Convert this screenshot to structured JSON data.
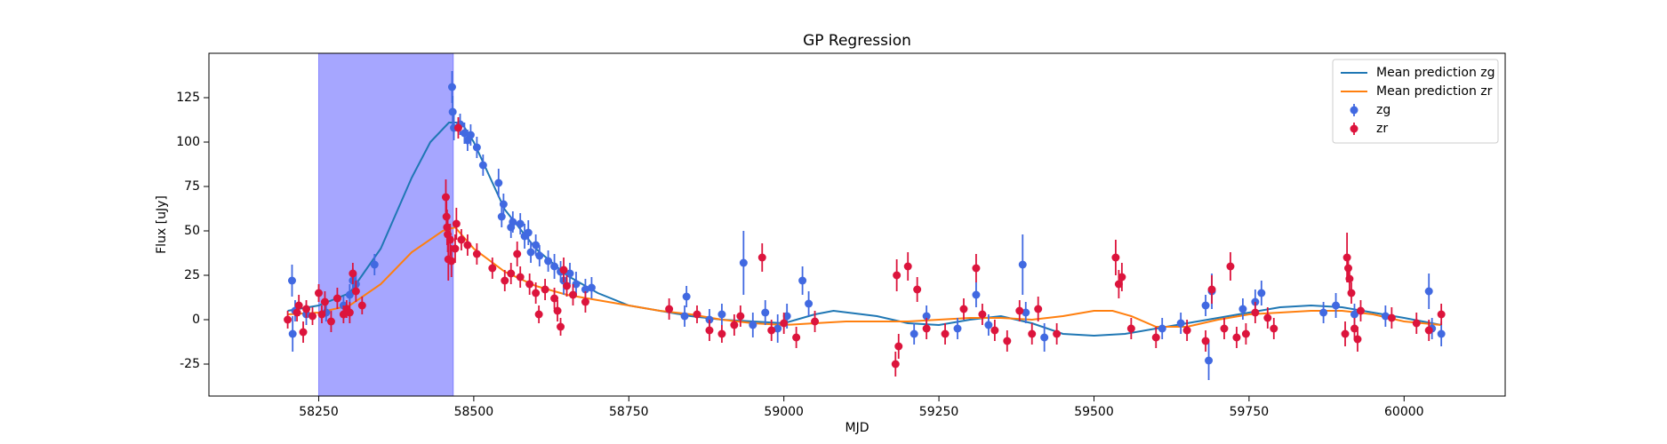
{
  "chart_data": {
    "type": "errorbar-line",
    "title": "GP Regression",
    "xlabel": "MJD",
    "ylabel": "Flux [uJy]",
    "xlim": [
      58073,
      60163
    ],
    "ylim": [
      -43,
      150
    ],
    "xticks": [
      58250,
      58500,
      58750,
      59000,
      59250,
      59500,
      59750,
      60000
    ],
    "yticks": [
      -25,
      0,
      25,
      50,
      75,
      100,
      125
    ],
    "legend": "upper right",
    "span": {
      "x": [
        58250,
        58467
      ],
      "color": "#0000ff",
      "alpha": 0.35
    },
    "series": [
      {
        "name": "Mean prediction zg",
        "kind": "line",
        "color": "#1f77b4",
        "x": [
          58200,
          58250,
          58300,
          58350,
          58400,
          58430,
          58460,
          58480,
          58500,
          58550,
          58600,
          58650,
          58700,
          58750,
          58800,
          58850,
          58900,
          58950,
          59000,
          59050,
          59080,
          59150,
          59200,
          59250,
          59300,
          59350,
          59400,
          59450,
          59500,
          59550,
          59600,
          59650,
          59700,
          59750,
          59800,
          59850,
          59900,
          59950,
          60000,
          60060
        ],
        "values": [
          5,
          8,
          15,
          40,
          80,
          100,
          111,
          111,
          100,
          62,
          40,
          25,
          15,
          8,
          5,
          2,
          0,
          -1,
          -2,
          3,
          5,
          2,
          -2,
          -3,
          0,
          2,
          -2,
          -8,
          -9,
          -8,
          -5,
          -2,
          1,
          4,
          7,
          8,
          7,
          4,
          1,
          -3
        ]
      },
      {
        "name": "Mean prediction zr",
        "kind": "line",
        "color": "#ff7f0e",
        "x": [
          58200,
          58250,
          58300,
          58350,
          58400,
          58450,
          58470,
          58500,
          58550,
          58600,
          58650,
          58700,
          58750,
          58800,
          58850,
          58900,
          58950,
          59000,
          59050,
          59100,
          59150,
          59200,
          59250,
          59300,
          59350,
          59400,
          59450,
          59500,
          59530,
          59560,
          59600,
          59650,
          59700,
          59750,
          59800,
          59850,
          59900,
          59950,
          60000,
          60060
        ],
        "values": [
          3,
          4,
          8,
          20,
          38,
          50,
          52,
          40,
          27,
          19,
          14,
          11,
          8,
          5,
          3,
          0,
          -2,
          -3,
          -2,
          -1,
          -1,
          -1,
          0,
          1,
          1,
          0,
          2,
          5,
          5,
          2,
          -4,
          -4,
          0,
          3,
          4,
          5,
          5,
          3,
          -1,
          -3
        ]
      },
      {
        "name": "zg",
        "kind": "errorbar",
        "color": "#4169e1",
        "x": [
          58207,
          58208,
          58212,
          58230,
          58262,
          58290,
          58300,
          58305,
          58310,
          58340,
          58465,
          58466,
          58468,
          58478,
          58485,
          58490,
          58495,
          58505,
          58515,
          58540,
          58545,
          58548,
          58560,
          58563,
          58575,
          58582,
          58588,
          58592,
          58600,
          58606,
          58620,
          58630,
          58640,
          58645,
          58655,
          58665,
          58680,
          58690,
          58840,
          58843,
          58880,
          58900,
          58935,
          58950,
          58970,
          58990,
          59005,
          59030,
          59040,
          59210,
          59230,
          59280,
          59310,
          59330,
          59385,
          59390,
          59420,
          59610,
          59640,
          59680,
          59685,
          59690,
          59740,
          59760,
          59770,
          59870,
          59890,
          59920,
          59970,
          60040,
          60045,
          60060
        ],
        "values": [
          22,
          -8,
          5,
          3,
          4,
          8,
          14,
          22,
          20,
          31,
          131,
          117,
          108,
          110,
          105,
          101,
          104,
          97,
          87,
          77,
          58,
          65,
          52,
          55,
          54,
          47,
          49,
          38,
          42,
          36,
          33,
          30,
          27,
          22,
          26,
          20,
          17,
          18,
          2,
          13,
          0,
          3,
          32,
          -3,
          4,
          -5,
          2,
          22,
          9,
          -8,
          2,
          -5,
          14,
          -3,
          31,
          4,
          -10,
          -5,
          -2,
          8,
          -23,
          16,
          6,
          10,
          15,
          4,
          8,
          3,
          2,
          16,
          -5,
          -8
        ],
        "errors": [
          9,
          10,
          6,
          6,
          5,
          5,
          6,
          7,
          6,
          6,
          9,
          9,
          7,
          6,
          6,
          6,
          6,
          6,
          6,
          8,
          6,
          6,
          6,
          6,
          6,
          7,
          7,
          6,
          6,
          6,
          6,
          7,
          6,
          8,
          6,
          7,
          6,
          6,
          6,
          6,
          6,
          6,
          18,
          7,
          7,
          8,
          7,
          8,
          7,
          6,
          6,
          6,
          7,
          6,
          17,
          6,
          8,
          6,
          6,
          6,
          11,
          10,
          6,
          7,
          7,
          6,
          7,
          6,
          6,
          10,
          6,
          7
        ]
      },
      {
        "name": "zr",
        "kind": "errorbar",
        "color": "#dc143c",
        "x": [
          58200,
          58215,
          58218,
          58225,
          58230,
          58240,
          58250,
          58255,
          58260,
          58270,
          58280,
          58290,
          58295,
          58300,
          58305,
          58310,
          58320,
          58455,
          58456,
          58457,
          58458,
          58459,
          58462,
          58464,
          58470,
          58472,
          58475,
          58480,
          58490,
          58505,
          58530,
          58550,
          58560,
          58570,
          58575,
          58590,
          58600,
          58605,
          58615,
          58630,
          58635,
          58640,
          58645,
          58650,
          58660,
          58680,
          58815,
          58860,
          58880,
          58900,
          58920,
          58930,
          58965,
          58980,
          59000,
          59020,
          59050,
          59180,
          59182,
          59185,
          59200,
          59215,
          59230,
          59260,
          59290,
          59310,
          59320,
          59340,
          59360,
          59380,
          59400,
          59410,
          59440,
          59535,
          59540,
          59545,
          59560,
          59600,
          59650,
          59680,
          59690,
          59710,
          59720,
          59730,
          59745,
          59760,
          59780,
          59790,
          59905,
          59908,
          59910,
          59912,
          59915,
          59920,
          59925,
          59930,
          59980,
          60020,
          60040,
          60060
        ],
        "values": [
          0,
          4,
          8,
          -7,
          6,
          2,
          15,
          3,
          10,
          -1,
          12,
          3,
          6,
          4,
          26,
          16,
          8,
          69,
          58,
          52,
          48,
          34,
          45,
          33,
          40,
          54,
          108,
          45,
          42,
          37,
          29,
          22,
          26,
          37,
          24,
          20,
          15,
          3,
          17,
          12,
          5,
          -4,
          28,
          19,
          14,
          10,
          6,
          3,
          -6,
          -8,
          -3,
          2,
          35,
          -6,
          -2,
          -10,
          -1,
          -25,
          25,
          -15,
          30,
          17,
          -5,
          -8,
          6,
          29,
          3,
          -6,
          -12,
          5,
          -8,
          6,
          -8,
          35,
          20,
          24,
          -5,
          -10,
          -6,
          -12,
          17,
          -5,
          30,
          -10,
          -8,
          4,
          1,
          -5,
          -8,
          35,
          29,
          23,
          15,
          -5,
          -11,
          5,
          1,
          -2,
          -6,
          3
        ],
        "errors": [
          5,
          5,
          6,
          6,
          5,
          5,
          5,
          5,
          6,
          6,
          6,
          5,
          5,
          6,
          6,
          6,
          5,
          10,
          9,
          10,
          10,
          12,
          9,
          9,
          8,
          9,
          6,
          6,
          6,
          6,
          6,
          6,
          6,
          7,
          6,
          6,
          6,
          5,
          6,
          6,
          6,
          5,
          7,
          6,
          6,
          6,
          6,
          5,
          6,
          5,
          6,
          6,
          8,
          6,
          6,
          6,
          6,
          7,
          9,
          7,
          8,
          7,
          6,
          6,
          6,
          8,
          6,
          6,
          6,
          6,
          6,
          7,
          6,
          10,
          8,
          8,
          6,
          6,
          6,
          6,
          8,
          6,
          8,
          6,
          6,
          6,
          6,
          6,
          7,
          14,
          8,
          7,
          6,
          6,
          7,
          6,
          6,
          6,
          6,
          6
        ]
      }
    ]
  }
}
